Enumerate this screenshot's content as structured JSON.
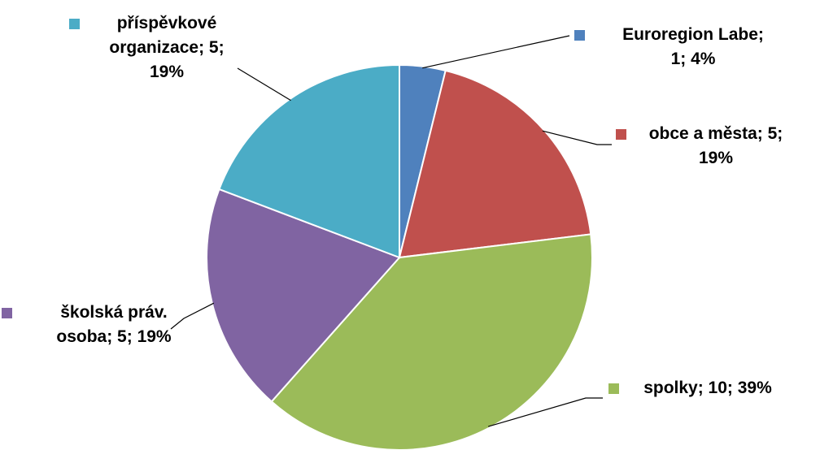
{
  "chart_data": {
    "type": "pie",
    "title": "",
    "slices": [
      {
        "label": "Euroregion Labe",
        "value": 1,
        "percent": 4,
        "color": "#4F81BD",
        "text_lines": [
          "Euroregion Labe;",
          "1; 4%"
        ]
      },
      {
        "label": "obce a města",
        "value": 5,
        "percent": 19,
        "color": "#C0504D",
        "text_lines": [
          "obce a města; 5;",
          "19%"
        ]
      },
      {
        "label": "spolky",
        "value": 10,
        "percent": 39,
        "color": "#9BBB59",
        "text_lines": [
          "spolky; 10; 39%"
        ]
      },
      {
        "label": "školská práv. osoba",
        "value": 5,
        "percent": 19,
        "color": "#8064A2",
        "text_lines": [
          "školská práv.",
          "osoba; 5; 19%"
        ]
      },
      {
        "label": "příspěvkové organizace",
        "value": 5,
        "percent": 19,
        "color": "#4BACC6",
        "text_lines": [
          "příspěvkové",
          "organizace; 5;",
          "19%"
        ]
      }
    ],
    "start_angle": "12 o'clock",
    "direction": "clockwise",
    "legend": "none (data labels with color keys)"
  }
}
